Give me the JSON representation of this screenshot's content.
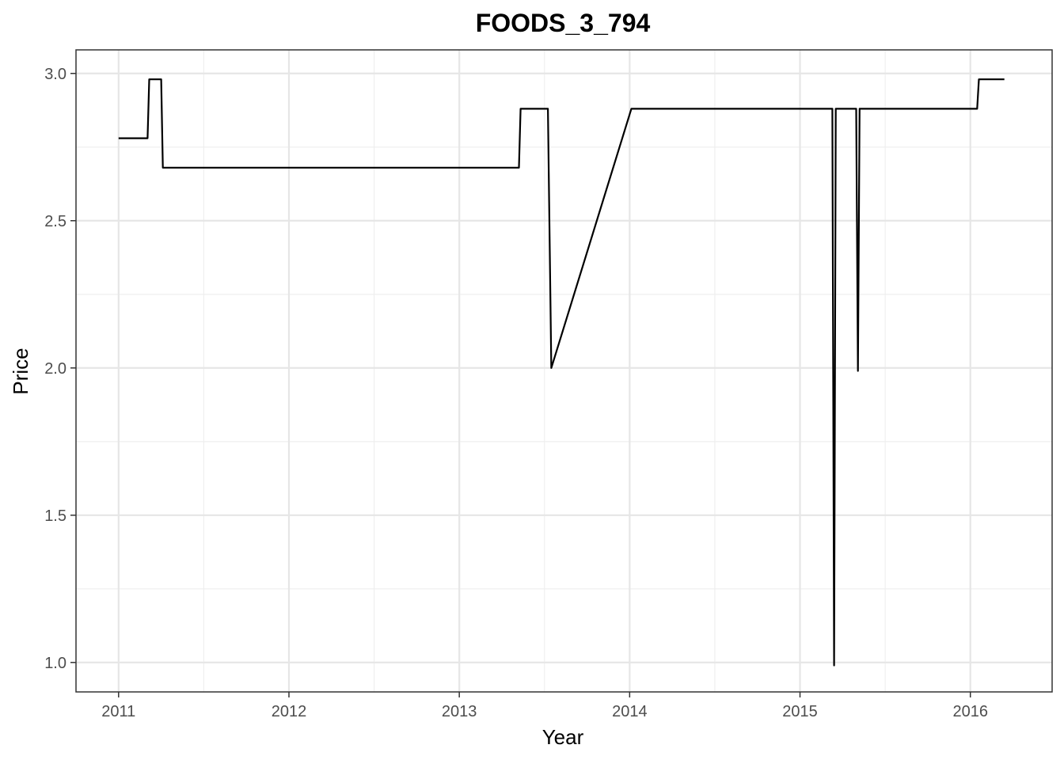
{
  "chart_data": {
    "type": "line",
    "title": "FOODS_3_794",
    "xlabel": "Year",
    "ylabel": "Price",
    "x_ticks": [
      "2011",
      "2012",
      "2013",
      "2014",
      "2015",
      "2016"
    ],
    "y_ticks": [
      "1.0",
      "1.5",
      "2.0",
      "2.5",
      "3.0"
    ],
    "xlim": [
      2010.75,
      2016.48
    ],
    "ylim": [
      0.9,
      3.08
    ],
    "grid": true,
    "legend": "none",
    "series": [
      {
        "color": "#000000",
        "points": [
          [
            2011.0,
            2.78
          ],
          [
            2011.17,
            2.78
          ],
          [
            2011.18,
            2.98
          ],
          [
            2011.25,
            2.98
          ],
          [
            2011.26,
            2.68
          ],
          [
            2013.35,
            2.68
          ],
          [
            2013.36,
            2.88
          ],
          [
            2013.52,
            2.88
          ],
          [
            2013.54,
            2.0
          ],
          [
            2014.01,
            2.88
          ],
          [
            2015.19,
            2.88
          ],
          [
            2015.2,
            0.99
          ],
          [
            2015.21,
            2.88
          ],
          [
            2015.33,
            2.88
          ],
          [
            2015.34,
            1.99
          ],
          [
            2015.35,
            2.88
          ],
          [
            2016.04,
            2.88
          ],
          [
            2016.05,
            2.98
          ],
          [
            2016.2,
            2.98
          ]
        ]
      }
    ]
  }
}
